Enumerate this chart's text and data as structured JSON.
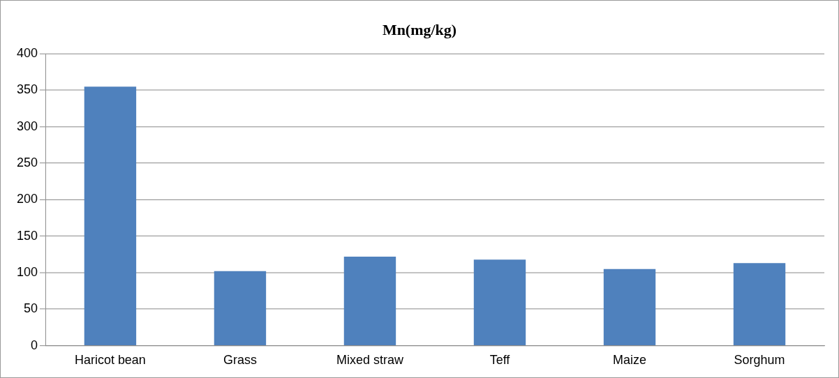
{
  "chart_data": {
    "type": "bar",
    "title": "Mn(mg/kg)",
    "categories": [
      "Haricot bean",
      "Grass",
      "Mixed straw",
      "Teff",
      "Maize",
      "Sorghum"
    ],
    "values": [
      355,
      102,
      122,
      118,
      105,
      113
    ],
    "color": "#4f81bd",
    "ylim": [
      0,
      400
    ],
    "yticks": [
      0,
      50,
      100,
      150,
      200,
      250,
      300,
      350,
      400
    ],
    "grid": "y"
  }
}
